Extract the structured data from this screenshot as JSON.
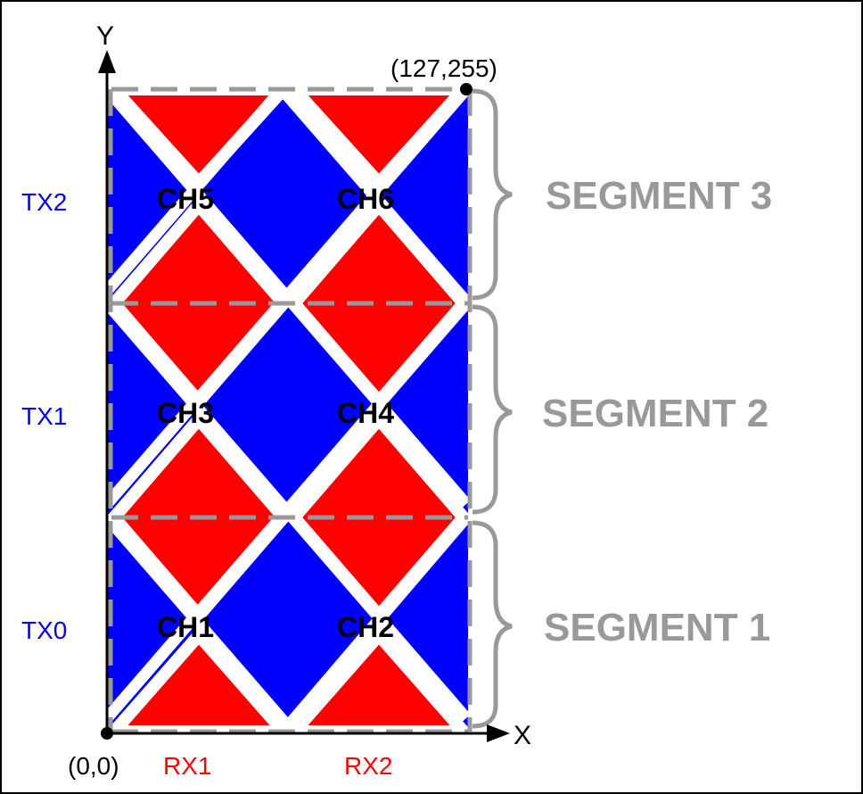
{
  "colors": {
    "tx": "#0000FF",
    "rx": "#FF0000",
    "segment": "#999999",
    "axis": "#000000",
    "border": "#000000"
  },
  "axes": {
    "x_label": "X",
    "y_label": "Y",
    "origin_label": "(0,0)",
    "max_label": "(127,255)"
  },
  "tx_labels": [
    "TX2",
    "TX1",
    "TX0"
  ],
  "rx_labels": [
    "RX1",
    "RX2"
  ],
  "channels": [
    "CH5",
    "CH6",
    "CH3",
    "CH4",
    "CH1",
    "CH2"
  ],
  "segments": [
    "SEGMENT 3",
    "SEGMENT 2",
    "SEGMENT 1"
  ],
  "icons": {
    "arrow": "arrow-icon",
    "brace": "curly-brace-icon",
    "point": "dot-icon"
  }
}
